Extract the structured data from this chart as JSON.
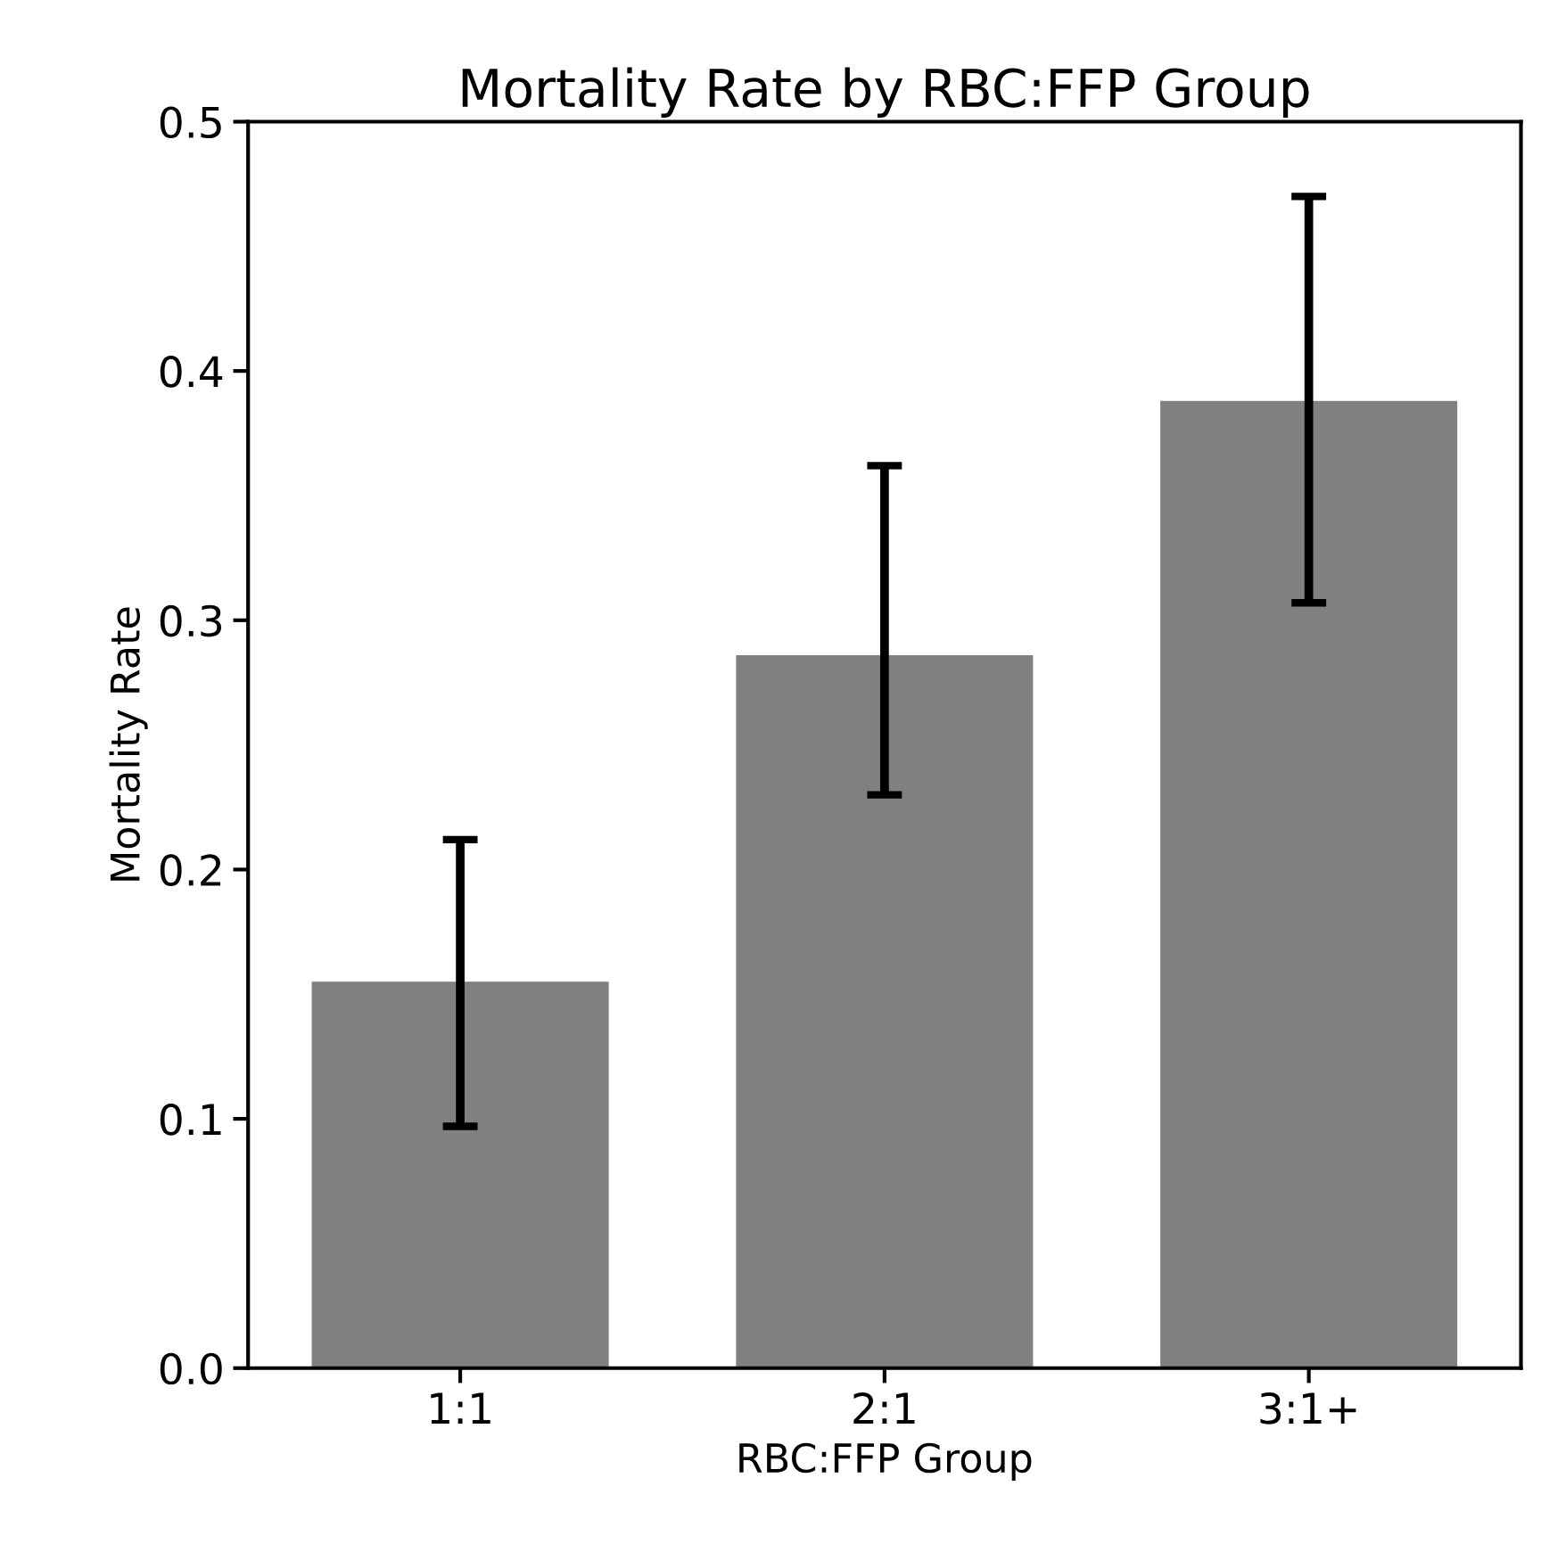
{
  "chart_data": {
    "type": "bar",
    "title": "Mortality Rate by RBC:FFP Group",
    "xlabel": "RBC:FFP Group",
    "ylabel": "Mortality Rate",
    "categories": [
      "1:1",
      "2:1",
      "3:1+"
    ],
    "values": [
      0.155,
      0.286,
      0.388
    ],
    "errors": [
      [
        0.097,
        0.212
      ],
      [
        0.23,
        0.362
      ],
      [
        0.307,
        0.47
      ]
    ],
    "color": "#808080",
    "ylim": [
      0,
      0.5
    ],
    "yticks": [
      {
        "value": 0,
        "label": "0.0"
      },
      0.1,
      0.2,
      0.3,
      0.4,
      0.5
    ],
    "grid": false,
    "legend": false
  }
}
